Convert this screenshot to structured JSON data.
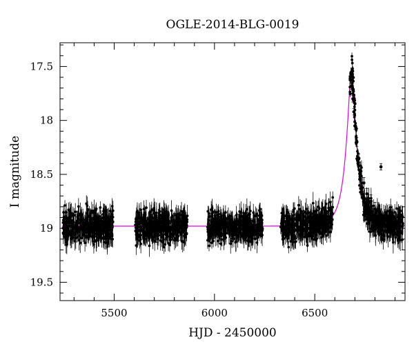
{
  "chart_data": {
    "type": "scatter",
    "title": "OGLE-2014-BLG-0019",
    "xlabel": "HJD - 2450000",
    "ylabel": "I magnitude",
    "xlim": [
      5230,
      6950
    ],
    "ylim": [
      19.67,
      17.28
    ],
    "y_inverted": true,
    "grid": false,
    "legend": "none",
    "x_ticks": [
      5500,
      6000,
      6500
    ],
    "x_tick_labels": [
      "5500",
      "6000",
      "6500"
    ],
    "y_ticks": [
      17.5,
      18,
      18.5,
      19,
      19.5
    ],
    "y_tick_labels": [
      "17.5",
      "18",
      "18.5",
      "19",
      "19.5"
    ],
    "observing_seasons": [
      [
        5245,
        5495
      ],
      [
        5605,
        5865
      ],
      [
        5965,
        6240
      ],
      [
        6330,
        6590
      ],
      [
        6675,
        6940
      ]
    ],
    "baseline_magnitude": 18.98,
    "model": {
      "name": "",
      "color": "#e000e0",
      "peak_time": 6683,
      "peak_magnitude": 17.56,
      "baseline_magnitude": 18.98
    },
    "series": [
      {
        "name": "",
        "color": "#000000",
        "x": [
          5260,
          5290,
          5320,
          5350,
          5380,
          5410,
          5440,
          5470,
          5490,
          5620,
          5650,
          5680,
          5710,
          5740,
          5770,
          5800,
          5830,
          5860,
          5970,
          6000,
          6030,
          6060,
          6090,
          6120,
          6150,
          6180,
          6210,
          6235,
          6340,
          6370,
          6400,
          6430,
          6460,
          6490,
          6520,
          6550,
          6580,
          6685,
          6690,
          6695,
          6700,
          6710,
          6720,
          6730,
          6745,
          6760,
          6780,
          6800,
          6830,
          6860,
          6890,
          6920,
          6830
        ],
        "y": [
          18.98,
          19.02,
          18.95,
          19.05,
          18.92,
          19.01,
          18.97,
          19.08,
          18.99,
          18.96,
          19.03,
          18.94,
          19.06,
          18.98,
          19.0,
          18.93,
          19.04,
          18.99,
          19.02,
          18.95,
          19.07,
          18.97,
          19.01,
          18.94,
          19.05,
          18.98,
          19.03,
          18.96,
          19.0,
          18.95,
          19.02,
          18.93,
          18.99,
          18.94,
          18.9,
          18.87,
          18.82,
          17.68,
          17.8,
          17.92,
          18.05,
          18.2,
          18.35,
          18.47,
          18.58,
          18.68,
          18.75,
          18.82,
          18.88,
          18.92,
          18.95,
          18.97,
          18.43
        ],
        "yerr": [
          0.07,
          0.07,
          0.07,
          0.07,
          0.07,
          0.07,
          0.07,
          0.07,
          0.07,
          0.07,
          0.07,
          0.07,
          0.07,
          0.07,
          0.07,
          0.07,
          0.07,
          0.07,
          0.07,
          0.07,
          0.07,
          0.07,
          0.07,
          0.07,
          0.07,
          0.07,
          0.07,
          0.07,
          0.07,
          0.07,
          0.07,
          0.07,
          0.07,
          0.07,
          0.07,
          0.07,
          0.07,
          0.03,
          0.03,
          0.03,
          0.03,
          0.04,
          0.04,
          0.05,
          0.05,
          0.05,
          0.06,
          0.06,
          0.06,
          0.07,
          0.07,
          0.07,
          0.03
        ]
      }
    ]
  }
}
